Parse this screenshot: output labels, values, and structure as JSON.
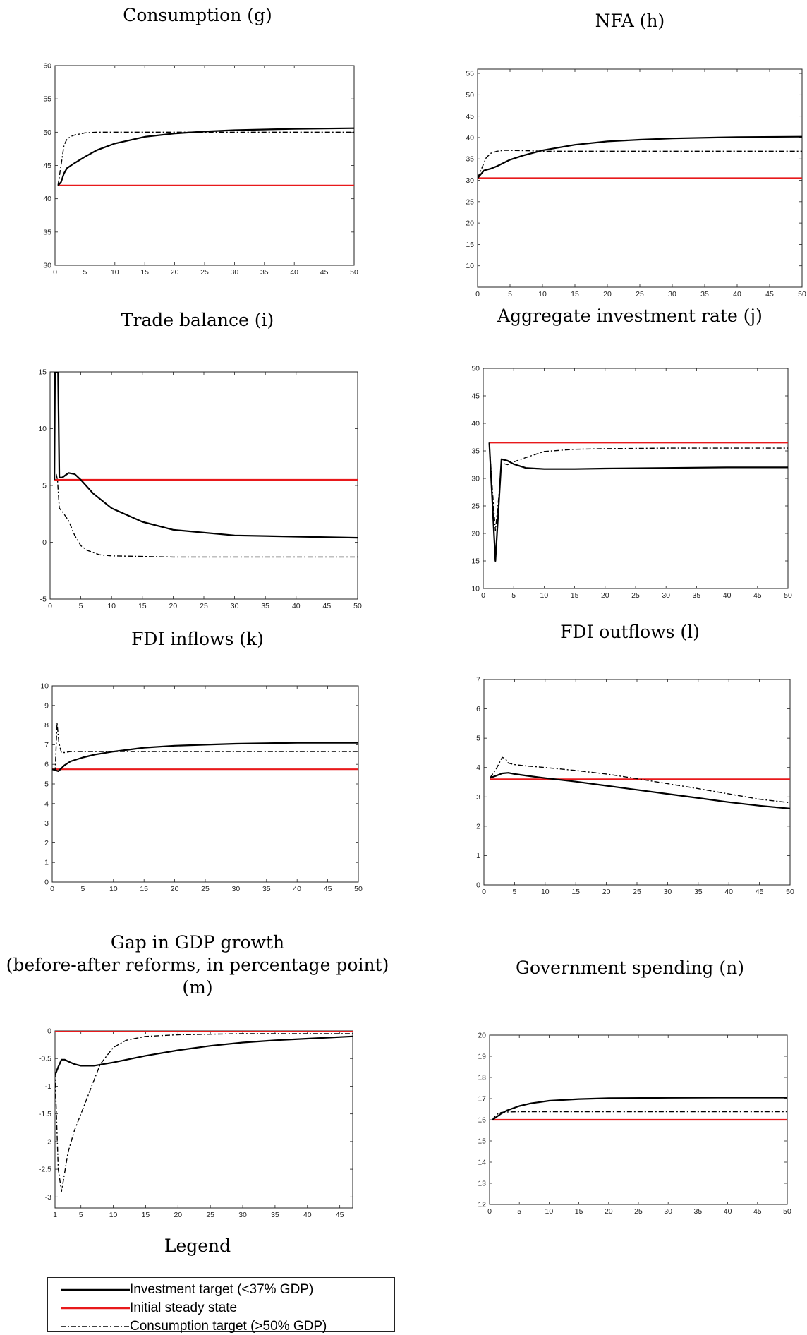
{
  "legend": {
    "title": "Legend",
    "items": [
      {
        "label": "Investment target (<37% GDP)",
        "color": "#000000",
        "dash": "solid"
      },
      {
        "label": "Initial steady state",
        "color": "#e8191b",
        "dash": "solid"
      },
      {
        "label": "Consumption target (>50% GDP)",
        "color": "#000000",
        "dash": "dashdot"
      }
    ]
  },
  "chart_data": [
    {
      "type": "line",
      "title": "Consumption (g)",
      "xlim": [
        0,
        50
      ],
      "ylim": [
        30,
        60
      ],
      "xticks": [
        0,
        5,
        10,
        15,
        20,
        25,
        30,
        35,
        40,
        45,
        50
      ],
      "yticks": [
        30,
        35,
        40,
        45,
        50,
        55,
        60
      ],
      "series": [
        {
          "name": "Investment target (<37% GDP)",
          "x": [
            0.5,
            1,
            1.5,
            2,
            3,
            5,
            7,
            10,
            15,
            20,
            25,
            30,
            40,
            50
          ],
          "y": [
            42,
            42.5,
            43.8,
            44.6,
            45.2,
            46.3,
            47.3,
            48.3,
            49.3,
            49.8,
            50.1,
            50.3,
            50.5,
            50.6
          ]
        },
        {
          "name": "Initial steady state",
          "x": [
            0.5,
            50
          ],
          "y": [
            42,
            42
          ]
        },
        {
          "name": "Consumption target (>50% GDP)",
          "x": [
            0.5,
            1,
            1.5,
            2,
            3,
            5,
            7,
            10,
            20,
            30,
            50
          ],
          "y": [
            42,
            45,
            48,
            49,
            49.5,
            49.9,
            50,
            50,
            50,
            50,
            50
          ]
        }
      ]
    },
    {
      "type": "line",
      "title": "NFA (h)",
      "xlim": [
        0,
        50
      ],
      "ylim": [
        5,
        56
      ],
      "xticks": [
        0,
        5,
        10,
        15,
        20,
        25,
        30,
        35,
        40,
        45,
        50
      ],
      "yticks": [
        10,
        15,
        20,
        25,
        30,
        35,
        40,
        45,
        50,
        55
      ],
      "series": [
        {
          "name": "Investment target (<37% GDP)",
          "x": [
            0,
            1,
            2,
            3,
            5,
            7,
            10,
            15,
            20,
            25,
            30,
            40,
            50
          ],
          "y": [
            30.5,
            32.3,
            32.7,
            33.3,
            34.8,
            35.8,
            37,
            38.3,
            39.1,
            39.5,
            39.8,
            40.1,
            40.2
          ]
        },
        {
          "name": "Initial steady state",
          "x": [
            0,
            50
          ],
          "y": [
            30.5,
            30.5
          ]
        },
        {
          "name": "Consumption target (>50% GDP)",
          "x": [
            0,
            0.7,
            1.3,
            2,
            3,
            4,
            5,
            8,
            10,
            20,
            50
          ],
          "y": [
            30.5,
            33,
            35.2,
            36.3,
            36.8,
            37,
            37,
            36.9,
            36.8,
            36.8,
            36.8
          ]
        }
      ]
    },
    {
      "type": "line",
      "title": "Trade balance (i)",
      "xlim": [
        0,
        50
      ],
      "ylim": [
        -5,
        15
      ],
      "xticks": [
        0,
        5,
        10,
        15,
        20,
        25,
        30,
        35,
        40,
        45,
        50
      ],
      "yticks": [
        -5,
        0,
        5,
        10,
        15
      ],
      "series": [
        {
          "name": "Investment target (<37% GDP)",
          "x": [
            0.7,
            0.8,
            1.1,
            1.3,
            1.5,
            2,
            3,
            4,
            5,
            7,
            10,
            15,
            20,
            30,
            40,
            50
          ],
          "y": [
            5.5,
            15,
            15,
            15,
            5.7,
            5.7,
            6.1,
            6,
            5.5,
            4.3,
            3,
            1.8,
            1.1,
            0.6,
            0.5,
            0.4
          ]
        },
        {
          "name": "Initial steady state",
          "x": [
            0.7,
            50
          ],
          "y": [
            5.5,
            5.5
          ]
        },
        {
          "name": "Consumption target (>50% GDP)",
          "x": [
            1,
            1.2,
            1.5,
            2,
            3,
            4,
            5,
            6,
            8,
            10,
            15,
            20,
            50
          ],
          "y": [
            6,
            5.5,
            3,
            2.7,
            1.9,
            0.6,
            -0.3,
            -0.7,
            -1.1,
            -1.2,
            -1.25,
            -1.3,
            -1.3
          ]
        }
      ]
    },
    {
      "type": "line",
      "title": "Aggregate investment rate (j)",
      "xlim": [
        0,
        50
      ],
      "ylim": [
        10,
        50
      ],
      "xticks": [
        0,
        5,
        10,
        15,
        20,
        25,
        30,
        35,
        40,
        45,
        50
      ],
      "yticks": [
        10,
        15,
        20,
        25,
        30,
        35,
        40,
        45,
        50
      ],
      "series": [
        {
          "name": "Investment target (<37% GDP)",
          "x": [
            1,
            2,
            3,
            4,
            5,
            7,
            10,
            15,
            20,
            30,
            40,
            50
          ],
          "y": [
            36.5,
            15,
            33.5,
            33.2,
            32.6,
            31.9,
            31.7,
            31.7,
            31.8,
            31.9,
            32,
            32
          ]
        },
        {
          "name": "Initial steady state",
          "x": [
            1,
            50
          ],
          "y": [
            36.5,
            36.5
          ]
        },
        {
          "name": "Consumption target (>50% GDP)",
          "x": [
            1,
            1.5,
            2,
            2.5,
            3,
            4,
            5,
            7,
            10,
            15,
            20,
            30,
            50
          ],
          "y": [
            36.5,
            28,
            20.5,
            26,
            32.8,
            32.5,
            33,
            33.8,
            34.9,
            35.3,
            35.4,
            35.5,
            35.5
          ]
        }
      ]
    },
    {
      "type": "line",
      "title": "FDI inflows (k)",
      "xlim": [
        0,
        50
      ],
      "ylim": [
        0,
        10
      ],
      "xticks": [
        0,
        5,
        10,
        15,
        20,
        25,
        30,
        35,
        40,
        45,
        50
      ],
      "yticks": [
        0,
        1,
        2,
        3,
        4,
        5,
        6,
        7,
        8,
        9,
        10
      ],
      "series": [
        {
          "name": "Investment target (<37% GDP)",
          "x": [
            0,
            0.5,
            1,
            2,
            3,
            5,
            7,
            10,
            15,
            20,
            25,
            30,
            40,
            50
          ],
          "y": [
            5.75,
            5.7,
            5.65,
            5.95,
            6.15,
            6.35,
            6.5,
            6.65,
            6.85,
            6.95,
            7,
            7.05,
            7.1,
            7.1
          ]
        },
        {
          "name": "Initial steady state",
          "x": [
            0,
            50
          ],
          "y": [
            5.75,
            5.75
          ]
        },
        {
          "name": "Consumption target (>50% GDP)",
          "x": [
            0,
            0.5,
            0.8,
            1.1,
            1.5,
            2,
            3,
            5,
            10,
            20,
            50
          ],
          "y": [
            5.75,
            5.75,
            8.1,
            7.1,
            6.6,
            6.6,
            6.65,
            6.65,
            6.65,
            6.65,
            6.65
          ]
        }
      ]
    },
    {
      "type": "line",
      "title": "FDI outflows (l)",
      "xlim": [
        0,
        50
      ],
      "ylim": [
        0,
        7
      ],
      "xticks": [
        0,
        5,
        10,
        15,
        20,
        25,
        30,
        35,
        40,
        45,
        50
      ],
      "yticks": [
        0,
        1,
        2,
        3,
        4,
        5,
        6,
        7
      ],
      "series": [
        {
          "name": "Investment target (<37% GDP)",
          "x": [
            1,
            2,
            3,
            4,
            5,
            7,
            10,
            15,
            20,
            25,
            30,
            35,
            40,
            45,
            50
          ],
          "y": [
            3.65,
            3.72,
            3.8,
            3.82,
            3.78,
            3.72,
            3.64,
            3.52,
            3.38,
            3.24,
            3.1,
            2.96,
            2.82,
            2.7,
            2.6
          ]
        },
        {
          "name": "Initial steady state",
          "x": [
            1,
            50
          ],
          "y": [
            3.6,
            3.6
          ]
        },
        {
          "name": "Consumption target (>50% GDP)",
          "x": [
            1,
            2,
            3,
            3.5,
            4,
            5,
            7,
            10,
            15,
            20,
            25,
            30,
            35,
            40,
            45,
            50
          ],
          "y": [
            3.65,
            3.95,
            4.35,
            4.3,
            4.15,
            4.1,
            4.05,
            4,
            3.9,
            3.78,
            3.62,
            3.45,
            3.28,
            3.1,
            2.92,
            2.8
          ]
        }
      ]
    },
    {
      "type": "line",
      "title": "Gap in GDP growth\n(before-after reforms, in percentage point) (m)",
      "xlim": [
        1,
        47
      ],
      "ylim": [
        -3.2,
        0
      ],
      "xticks": [
        1,
        5,
        10,
        15,
        20,
        25,
        30,
        35,
        40,
        45
      ],
      "yticks": [
        0,
        -0.5,
        -1,
        -1.5,
        -2,
        -2.5,
        -3
      ],
      "series": [
        {
          "name": "Investment target (<37% GDP)",
          "x": [
            1,
            1.5,
            2,
            2.5,
            3,
            4,
            5,
            7,
            10,
            15,
            20,
            25,
            30,
            35,
            40,
            47
          ],
          "y": [
            -0.8,
            -0.65,
            -0.52,
            -0.52,
            -0.55,
            -0.6,
            -0.63,
            -0.63,
            -0.57,
            -0.45,
            -0.35,
            -0.27,
            -0.21,
            -0.17,
            -0.14,
            -0.1
          ]
        },
        {
          "name": "Initial steady state",
          "x": [
            1,
            47
          ],
          "y": [
            0,
            0
          ]
        },
        {
          "name": "Consumption target (>50% GDP)",
          "x": [
            1,
            1.5,
            2,
            2.3,
            3,
            4,
            5,
            6,
            7,
            8,
            10,
            12,
            15,
            20,
            30,
            47
          ],
          "y": [
            -0.75,
            -2.5,
            -2.9,
            -2.7,
            -2.2,
            -1.8,
            -1.5,
            -1.2,
            -0.9,
            -0.6,
            -0.3,
            -0.17,
            -0.1,
            -0.07,
            -0.05,
            -0.05
          ]
        }
      ]
    },
    {
      "type": "line",
      "title": "Government spending (n)",
      "xlim": [
        0,
        50
      ],
      "ylim": [
        12,
        20
      ],
      "xticks": [
        0,
        5,
        10,
        15,
        20,
        25,
        30,
        35,
        40,
        45,
        50
      ],
      "yticks": [
        12,
        13,
        14,
        15,
        16,
        17,
        18,
        19,
        20
      ],
      "series": [
        {
          "name": "Investment target (<37% GDP)",
          "x": [
            0.5,
            1,
            2,
            3,
            5,
            7,
            10,
            15,
            20,
            30,
            40,
            50
          ],
          "y": [
            16,
            16.1,
            16.3,
            16.45,
            16.65,
            16.78,
            16.9,
            16.98,
            17.02,
            17.04,
            17.05,
            17.05
          ]
        },
        {
          "name": "Initial steady state",
          "x": [
            0.5,
            50
          ],
          "y": [
            16,
            16
          ]
        },
        {
          "name": "Consumption target (>50% GDP)",
          "x": [
            0.5,
            1,
            1.5,
            2,
            3,
            5,
            10,
            50
          ],
          "y": [
            16,
            16.2,
            16.3,
            16.35,
            16.37,
            16.38,
            16.38,
            16.38
          ]
        }
      ]
    }
  ]
}
